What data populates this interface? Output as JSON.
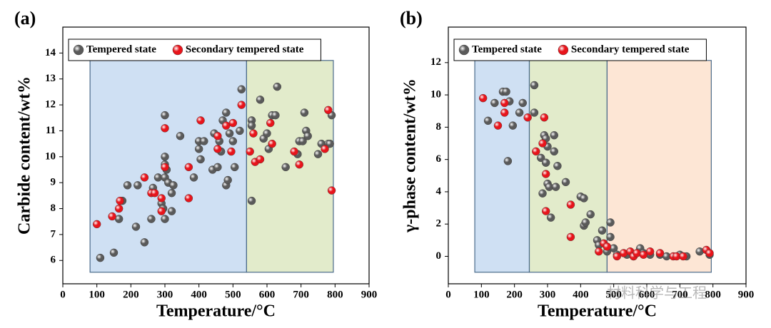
{
  "chart_data": [
    {
      "type": "scatter",
      "label": "(a)",
      "xlabel": "Temperature/°C",
      "ylabel": "Carbide content/wt%",
      "xlim": [
        0,
        900
      ],
      "xticks": [
        0,
        100,
        200,
        300,
        400,
        500,
        600,
        700,
        800,
        900
      ],
      "ylim": [
        5.1,
        15
      ],
      "yticks": [
        6,
        7,
        8,
        9,
        10,
        11,
        12,
        13,
        14
      ],
      "legend": "top",
      "regions": [
        {
          "x": [
            80,
            540
          ],
          "color": "#cfe0f3"
        },
        {
          "x": [
            540,
            795
          ],
          "color": "#e2ebcb"
        }
      ],
      "series": [
        {
          "name": "Tempered state",
          "color": "#5a5a5a",
          "x": [
            110,
            150,
            165,
            175,
            190,
            215,
            220,
            240,
            260,
            265,
            280,
            290,
            295,
            300,
            300,
            300,
            305,
            300,
            310,
            300,
            320,
            320,
            325,
            345,
            385,
            400,
            400,
            405,
            415,
            440,
            445,
            455,
            460,
            465,
            470,
            480,
            480,
            485,
            490,
            500,
            505,
            520,
            525,
            555,
            555,
            555,
            580,
            590,
            600,
            605,
            615,
            625,
            630,
            655,
            690,
            695,
            705,
            710,
            715,
            720,
            750,
            760,
            780,
            785,
            790
          ],
          "values": [
            6.1,
            6.3,
            7.6,
            8.3,
            8.9,
            7.3,
            8.9,
            6.7,
            7.6,
            8.8,
            9.2,
            8.2,
            8.0,
            11.6,
            10.0,
            9.7,
            9.5,
            9.2,
            9.0,
            7.6,
            7.9,
            8.6,
            8.9,
            10.8,
            9.2,
            10.3,
            10.6,
            9.9,
            10.6,
            9.5,
            10.9,
            9.6,
            10.6,
            10.2,
            11.4,
            11.7,
            8.9,
            9.1,
            10.9,
            10.6,
            9.6,
            11.0,
            12.6,
            11.4,
            11.2,
            8.3,
            12.2,
            10.7,
            10.9,
            10.3,
            11.6,
            11.6,
            12.7,
            9.6,
            10.1,
            10.6,
            10.6,
            11.7,
            11.0,
            10.8,
            10.1,
            10.5,
            10.5,
            10.5,
            11.6
          ]
        },
        {
          "name": "Secondary tempered state",
          "color": "#e8141b",
          "x": [
            100,
            145,
            165,
            168,
            240,
            260,
            270,
            290,
            290,
            300,
            300,
            370,
            370,
            405,
            455,
            455,
            480,
            495,
            500,
            525,
            550,
            560,
            565,
            580,
            610,
            615,
            680,
            695,
            770,
            780,
            790
          ],
          "values": [
            7.4,
            7.7,
            8.0,
            8.3,
            9.2,
            8.6,
            8.6,
            8.4,
            7.9,
            11.1,
            9.6,
            8.4,
            9.6,
            11.4,
            10.3,
            10.8,
            11.2,
            10.2,
            11.3,
            12.0,
            10.2,
            10.9,
            9.8,
            9.9,
            11.3,
            10.5,
            10.2,
            9.7,
            10.3,
            11.8,
            8.7
          ]
        }
      ]
    },
    {
      "type": "scatter",
      "label": "(b)",
      "xlabel": "Temperature/°C",
      "ylabel": "γ-phase content/wt%",
      "xlim": [
        0,
        900
      ],
      "xticks": [
        0,
        100,
        200,
        300,
        400,
        500,
        600,
        700,
        800,
        900
      ],
      "ylim": [
        -1.7,
        14.2
      ],
      "yticks": [
        0,
        2,
        4,
        6,
        8,
        10,
        12
      ],
      "legend": "top",
      "regions": [
        {
          "x": [
            80,
            245
          ],
          "color": "#cfe0f3"
        },
        {
          "x": [
            245,
            480
          ],
          "color": "#e2ebcb"
        },
        {
          "x": [
            480,
            795
          ],
          "color": "#fde6d5"
        }
      ],
      "series": [
        {
          "name": "Tempered state",
          "color": "#5a5a5a",
          "x": [
            120,
            140,
            165,
            175,
            180,
            185,
            195,
            215,
            225,
            260,
            260,
            280,
            285,
            290,
            295,
            295,
            300,
            300,
            305,
            310,
            320,
            320,
            325,
            330,
            355,
            400,
            410,
            410,
            415,
            430,
            450,
            455,
            465,
            480,
            490,
            490,
            500,
            510,
            540,
            560,
            580,
            590,
            610,
            640,
            660,
            700,
            720,
            760,
            790
          ],
          "values": [
            8.4,
            9.5,
            10.2,
            10.2,
            5.9,
            9.6,
            8.1,
            8.9,
            9.5,
            10.6,
            8.9,
            6.1,
            3.9,
            7.5,
            7.3,
            5.8,
            6.8,
            4.5,
            4.3,
            2.4,
            7.5,
            6.5,
            4.3,
            5.6,
            4.6,
            3.7,
            3.6,
            1.9,
            2.1,
            2.6,
            1.0,
            0.7,
            1.6,
            0.3,
            1.2,
            2.1,
            0.5,
            0.1,
            0.1,
            0.0,
            0.5,
            0.2,
            0.1,
            0.1,
            0.0,
            0.1,
            0.0,
            0.3,
            0.1
          ]
        },
        {
          "name": "Secondary tempered state",
          "color": "#e8141b",
          "x": [
            105,
            150,
            170,
            170,
            240,
            265,
            285,
            290,
            295,
            295,
            370,
            370,
            455,
            470,
            480,
            510,
            530,
            550,
            560,
            570,
            590,
            610,
            640,
            680,
            690,
            710,
            780,
            790
          ],
          "values": [
            9.8,
            8.1,
            9.5,
            8.9,
            8.6,
            6.5,
            7.0,
            8.6,
            2.8,
            5.1,
            3.2,
            1.2,
            0.3,
            0.8,
            0.6,
            0.0,
            0.2,
            0.3,
            0.0,
            0.2,
            0.1,
            0.3,
            0.2,
            0.0,
            0.0,
            0.0,
            0.4,
            0.2
          ]
        }
      ]
    }
  ],
  "watermark": "材料科学与工程"
}
